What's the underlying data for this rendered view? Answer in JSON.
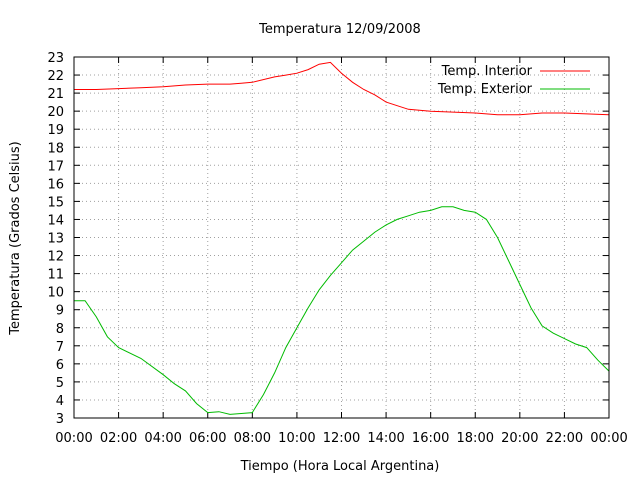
{
  "chart_data": {
    "type": "line",
    "title": "Temperatura 12/09/2008",
    "xlabel": "Tiempo (Hora Local Argentina)",
    "ylabel": "Temperatura (Grados Celsius)",
    "xlim": [
      "00:00",
      "24:00"
    ],
    "ylim": [
      3,
      23
    ],
    "grid": true,
    "legend_position": "top-right",
    "x_tick_labels": [
      "00:00",
      "02:00",
      "04:00",
      "06:00",
      "08:00",
      "10:00",
      "12:00",
      "14:00",
      "16:00",
      "18:00",
      "20:00",
      "22:00",
      "00:00"
    ],
    "y_tick_labels": [
      "3",
      "4",
      "5",
      "6",
      "7",
      "8",
      "9",
      "10",
      "11",
      "12",
      "13",
      "14",
      "15",
      "16",
      "17",
      "18",
      "19",
      "20",
      "21",
      "22",
      "23"
    ],
    "series": [
      {
        "name": "Temp. Interior",
        "color": "#ff0000",
        "x": [
          "00:00",
          "01:00",
          "02:00",
          "03:00",
          "04:00",
          "05:00",
          "06:00",
          "07:00",
          "07:30",
          "08:00",
          "09:00",
          "09:30",
          "10:00",
          "10:30",
          "11:00",
          "11:30",
          "12:00",
          "12:30",
          "13:00",
          "13:30",
          "14:00",
          "14:30",
          "15:00",
          "16:00",
          "17:00",
          "18:00",
          "19:00",
          "20:00",
          "21:00",
          "22:00",
          "23:00",
          "24:00"
        ],
        "values": [
          21.2,
          21.2,
          21.25,
          21.3,
          21.35,
          21.45,
          21.5,
          21.5,
          21.55,
          21.6,
          21.9,
          22.0,
          22.1,
          22.3,
          22.6,
          22.7,
          22.1,
          21.6,
          21.2,
          20.9,
          20.5,
          20.3,
          20.1,
          20.0,
          19.95,
          19.9,
          19.8,
          19.8,
          19.9,
          19.9,
          19.85,
          19.8
        ]
      },
      {
        "name": "Temp. Exterior",
        "color": "#00bb00",
        "x": [
          "00:00",
          "00:30",
          "01:00",
          "01:30",
          "02:00",
          "03:00",
          "04:00",
          "04:30",
          "05:00",
          "05:30",
          "06:00",
          "06:30",
          "07:00",
          "07:30",
          "08:00",
          "08:30",
          "09:00",
          "09:30",
          "10:00",
          "10:30",
          "11:00",
          "11:30",
          "12:00",
          "12:30",
          "13:00",
          "13:30",
          "14:00",
          "14:30",
          "15:00",
          "15:30",
          "16:00",
          "16:30",
          "17:00",
          "17:30",
          "18:00",
          "18:30",
          "19:00",
          "19:30",
          "20:00",
          "20:30",
          "21:00",
          "21:30",
          "22:00",
          "22:30",
          "23:00",
          "23:30",
          "24:00"
        ],
        "values": [
          9.5,
          9.5,
          8.6,
          7.5,
          6.9,
          6.3,
          5.4,
          4.9,
          4.5,
          3.8,
          3.3,
          3.35,
          3.2,
          3.25,
          3.3,
          4.3,
          5.5,
          6.9,
          8.0,
          9.1,
          10.1,
          10.9,
          11.6,
          12.3,
          12.8,
          13.3,
          13.7,
          14.0,
          14.2,
          14.4,
          14.5,
          14.7,
          14.7,
          14.5,
          14.4,
          14.0,
          13.0,
          11.7,
          10.4,
          9.1,
          8.1,
          7.7,
          7.4,
          7.1,
          6.9,
          6.2,
          5.6
        ]
      }
    ]
  }
}
